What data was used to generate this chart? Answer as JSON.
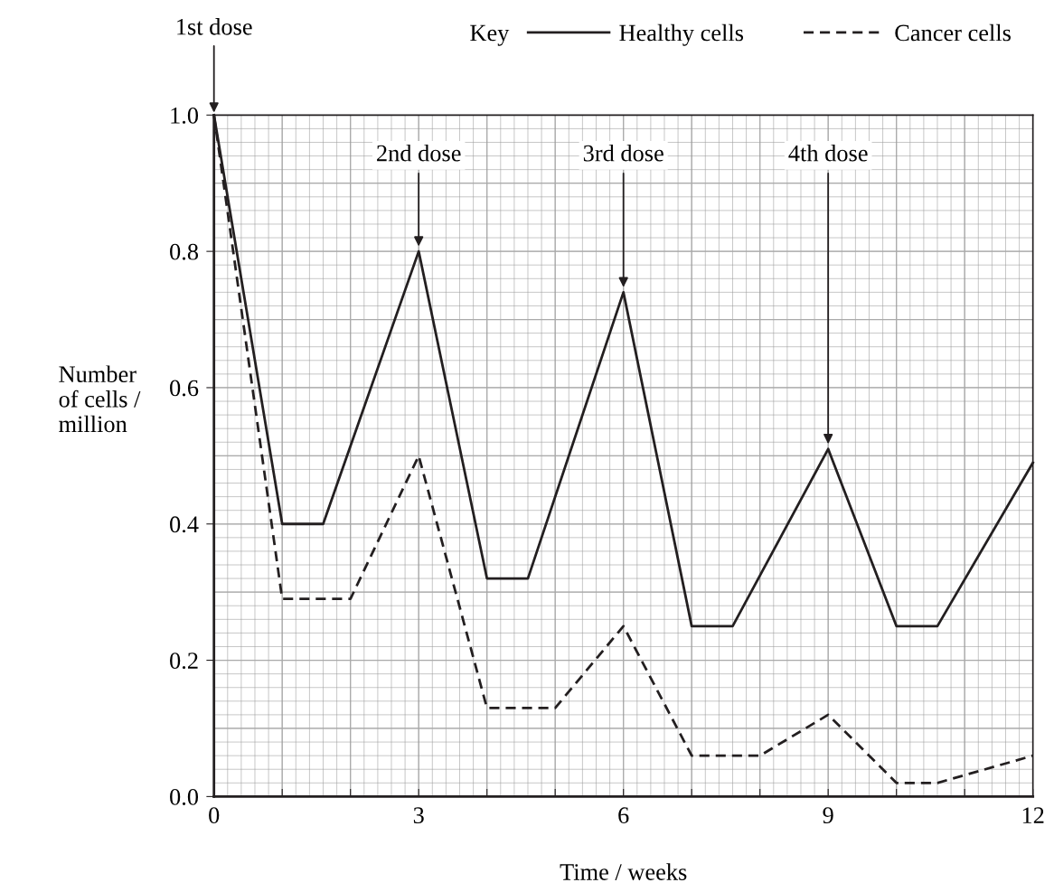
{
  "chart_data": {
    "type": "line",
    "xlabel": "Time / weeks",
    "ylabel": "Number\nof cells /\nmillion",
    "legend_title": "Key",
    "series": [
      {
        "name": "Healthy cells",
        "color": "#231f20",
        "line_style": "solid",
        "x": [
          0,
          1,
          1.6,
          3,
          4,
          4.6,
          6,
          7,
          7.6,
          9,
          10,
          10.6,
          12
        ],
        "values": [
          1.0,
          0.4,
          0.4,
          0.8,
          0.32,
          0.32,
          0.74,
          0.25,
          0.25,
          0.51,
          0.25,
          0.25,
          0.49
        ]
      },
      {
        "name": "Cancer cells",
        "color": "#231f20",
        "line_style": "dashed",
        "x": [
          0,
          1,
          2,
          3,
          4,
          5,
          6,
          7,
          8,
          9,
          10,
          10.6,
          12
        ],
        "values": [
          1.0,
          0.29,
          0.29,
          0.5,
          0.13,
          0.13,
          0.25,
          0.06,
          0.06,
          0.12,
          0.02,
          0.02,
          0.06
        ]
      }
    ],
    "xlim": [
      0,
      12
    ],
    "ylim": [
      0,
      1.0
    ],
    "xticks": [
      0,
      {
        "value": 1,
        "label": null
      },
      {
        "value": 2,
        "label": null
      },
      3,
      {
        "value": 4,
        "label": null
      },
      {
        "value": 5,
        "label": null
      },
      6,
      {
        "value": 7,
        "label": null
      },
      {
        "value": 8,
        "label": null
      },
      9,
      {
        "value": 10,
        "label": null
      },
      {
        "value": 11,
        "label": null
      },
      12
    ],
    "yticks": [
      {
        "value": 0,
        "label": "0.0"
      },
      0.2,
      0.4,
      0.6,
      0.8,
      {
        "value": 1,
        "label": "1.0"
      }
    ],
    "grid": true,
    "legend": "top right",
    "marker": "none",
    "annotations": [
      {
        "text": "1st dose",
        "x": 0,
        "y": 1.0
      },
      {
        "text": "2nd dose",
        "x": 3,
        "y": 0.8
      },
      {
        "text": "3rd dose",
        "x": 6,
        "y": 0.74
      },
      {
        "text": "4th dose",
        "x": 9,
        "y": 0.51
      }
    ]
  }
}
